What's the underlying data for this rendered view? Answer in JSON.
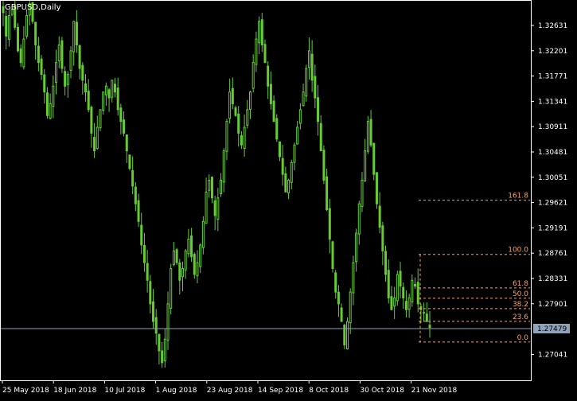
{
  "window": {
    "symbol_label": "GBPUSD,Daily"
  },
  "colors": {
    "background": "#000000",
    "frame": "#ffffff",
    "candle": "#66cc33",
    "fibonacci": "#f4a460",
    "price_line": "#8fa3b8",
    "price_tag_bg": "#8fa3b8",
    "price_tag_text": "#000000"
  },
  "chart_data": {
    "type": "candlestick",
    "symbol": "GBPUSD",
    "timeframe": "Daily",
    "ylim": [
      1.266,
      1.3305
    ],
    "y_ticks": [
      "1.32631",
      "1.32201",
      "1.31771",
      "1.31341",
      "1.30911",
      "1.30481",
      "1.30051",
      "1.29621",
      "1.29191",
      "1.28761",
      "1.28331",
      "1.27901",
      "1.27041"
    ],
    "x_ticks": [
      "25 May 2018",
      "18 Jun 2018",
      "10 Jul 2018",
      "1 Aug 2018",
      "23 Aug 2018",
      "14 Sep 2018",
      "8 Oct 2018",
      "30 Oct 2018",
      "21 Nov 2018"
    ],
    "current_price": "1.27479",
    "fibonacci": {
      "low": 1.2725,
      "high": 1.2874,
      "levels": [
        {
          "ratio": 0.0,
          "label": "0.0"
        },
        {
          "ratio": 0.236,
          "label": "23.6"
        },
        {
          "ratio": 0.382,
          "label": "38.2"
        },
        {
          "ratio": 0.5,
          "label": "50.0"
        },
        {
          "ratio": 0.618,
          "label": "61.8"
        },
        {
          "ratio": 1.0,
          "label": "100.0"
        },
        {
          "ratio": 1.618,
          "label": "161.8"
        }
      ]
    },
    "close_path": [
      1.3285,
      1.3245,
      1.328,
      1.329,
      1.326,
      1.322,
      1.32,
      1.324,
      1.328,
      1.33,
      1.327,
      1.323,
      1.32,
      1.318,
      1.315,
      1.311,
      1.313,
      1.316,
      1.32,
      1.323,
      1.319,
      1.316,
      1.318,
      1.322,
      1.327,
      1.323,
      1.319,
      1.317,
      1.315,
      1.312,
      1.308,
      1.305,
      1.309,
      1.312,
      1.315,
      1.316,
      1.314,
      1.317,
      1.315,
      1.312,
      1.31,
      1.308,
      1.305,
      1.302,
      1.299,
      1.296,
      1.293,
      1.289,
      1.286,
      1.283,
      1.279,
      1.276,
      1.274,
      1.271,
      1.269,
      1.273,
      1.279,
      1.285,
      1.288,
      1.286,
      1.283,
      1.285,
      1.288,
      1.29,
      1.287,
      1.284,
      1.286,
      1.289,
      1.293,
      1.298,
      1.3,
      1.297,
      1.294,
      1.297,
      1.3,
      1.305,
      1.31,
      1.315,
      1.313,
      1.311,
      1.308,
      1.306,
      1.309,
      1.312,
      1.315,
      1.32,
      1.324,
      1.327,
      1.323,
      1.32,
      1.316,
      1.313,
      1.31,
      1.307,
      1.304,
      1.301,
      1.298,
      1.3,
      1.303,
      1.306,
      1.309,
      1.312,
      1.315,
      1.319,
      1.322,
      1.317,
      1.314,
      1.31,
      1.305,
      1.3,
      1.295,
      1.29,
      1.285,
      1.281,
      1.279,
      1.276,
      1.272,
      1.276,
      1.281,
      1.286,
      1.291,
      1.296,
      1.3,
      1.305,
      1.31,
      1.306,
      1.301,
      1.296,
      1.292,
      1.288,
      1.284,
      1.28,
      1.278,
      1.28,
      1.284,
      1.282,
      1.28,
      1.278,
      1.28,
      1.283,
      1.282,
      1.279,
      1.278,
      1.2775,
      1.276,
      1.275
    ]
  }
}
